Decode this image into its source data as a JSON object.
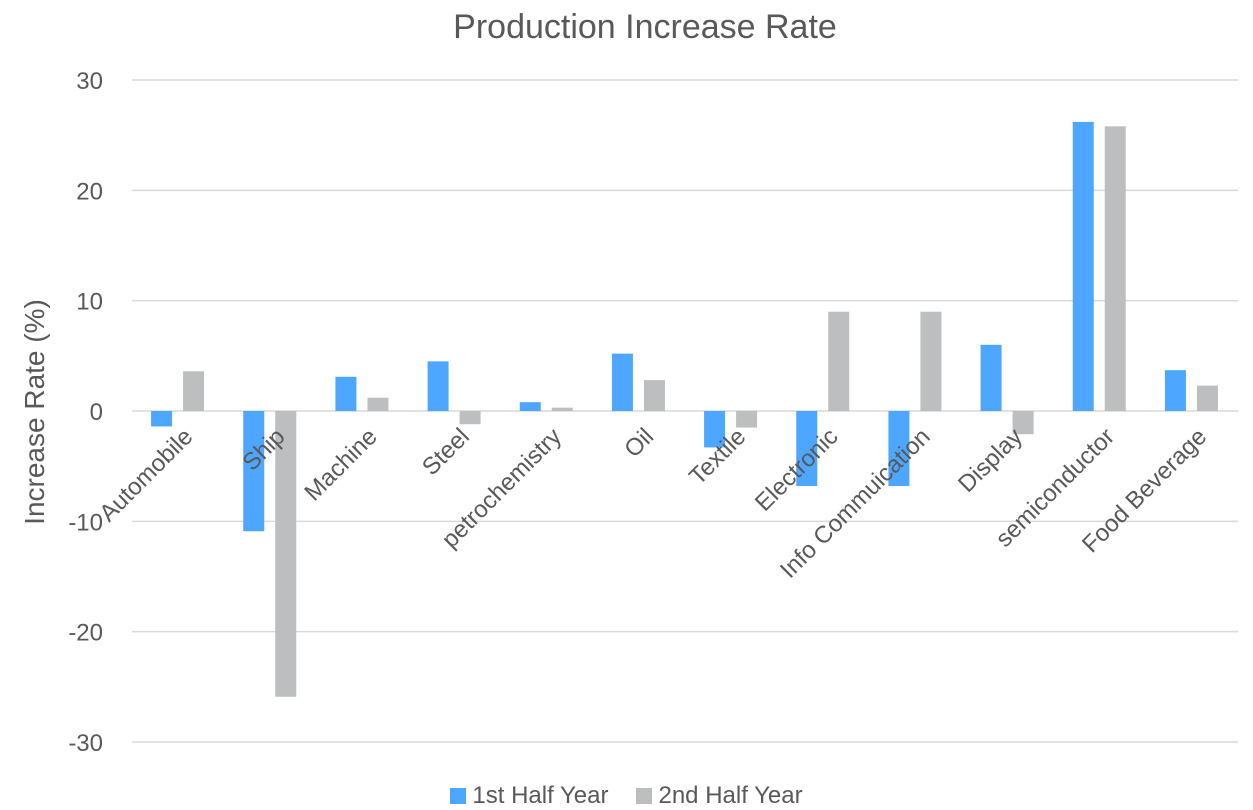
{
  "chart_data": {
    "type": "bar",
    "title": "Production Increase Rate",
    "xlabel": "",
    "ylabel": "Increase Rate (%)",
    "ylim": [
      -30,
      30
    ],
    "yticks": [
      30,
      20,
      10,
      0,
      -10,
      -20,
      -30
    ],
    "grid": true,
    "legend_position": "bottom",
    "categories": [
      "Automobile",
      "Ship",
      "Machine",
      "Steel",
      "petrochemistry",
      "Oil",
      "Textile",
      "Electronic",
      "Info Commuication",
      "Display",
      "semiconductor",
      "Food Beverage"
    ],
    "series": [
      {
        "name": "1st Half Year",
        "color": "#4da6ff",
        "values": [
          -1.4,
          -10.9,
          3.1,
          4.5,
          0.8,
          5.2,
          -3.3,
          -6.8,
          -6.8,
          6.0,
          26.2,
          3.7
        ]
      },
      {
        "name": "2nd Half Year",
        "color": "#bcbec0",
        "values": [
          3.6,
          -25.9,
          1.2,
          -1.2,
          0.3,
          2.8,
          -1.5,
          9.0,
          9.0,
          -2.1,
          25.8,
          2.3
        ]
      }
    ]
  }
}
